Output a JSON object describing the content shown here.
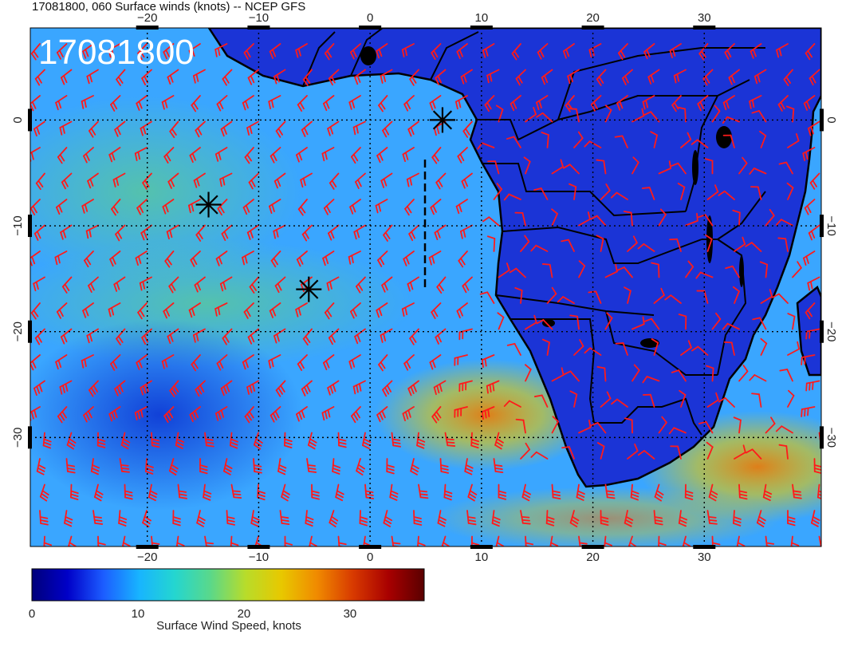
{
  "title": "17081800, 060 Surface winds (knots) -- NCEP GFS",
  "stamp": "17081800",
  "colorbar": {
    "label": "Surface Wind Speed, knots",
    "ticks": [
      "0",
      "10",
      "20",
      "30"
    ],
    "tick_values": [
      0,
      10,
      20,
      30
    ],
    "range": [
      0,
      37
    ],
    "colors": [
      "#00007a",
      "#0000c8",
      "#1c5cff",
      "#18b4ff",
      "#24d6d0",
      "#5ad88a",
      "#b8dc2a",
      "#e8c800",
      "#f08a00",
      "#d83a00",
      "#a80000",
      "#5a0000"
    ]
  },
  "axes": {
    "lon_labels": [
      "−20",
      "−10",
      "0",
      "10",
      "20",
      "30"
    ],
    "lon_values": [
      -20,
      -10,
      0,
      10,
      20,
      30
    ],
    "lat_labels": [
      "0",
      "−10",
      "−20",
      "−30"
    ],
    "lat_values": [
      0,
      -10,
      -20,
      -30
    ],
    "lon_range": [
      -30.5,
      40.5
    ],
    "lat_range": [
      8.7,
      -40.3
    ]
  },
  "map": {
    "ocean_color": "#3aa6ff",
    "land_color": "#1b34d6",
    "barb_color": "#ff1a1a",
    "coast_color": "#000000",
    "markers": [
      {
        "name": "marker-a",
        "lon": 6.5,
        "lat": 0.0
      },
      {
        "name": "marker-b",
        "lon": -14.5,
        "lat": -8.0
      },
      {
        "name": "marker-c",
        "lon": -5.5,
        "lat": -16.0
      }
    ]
  }
}
